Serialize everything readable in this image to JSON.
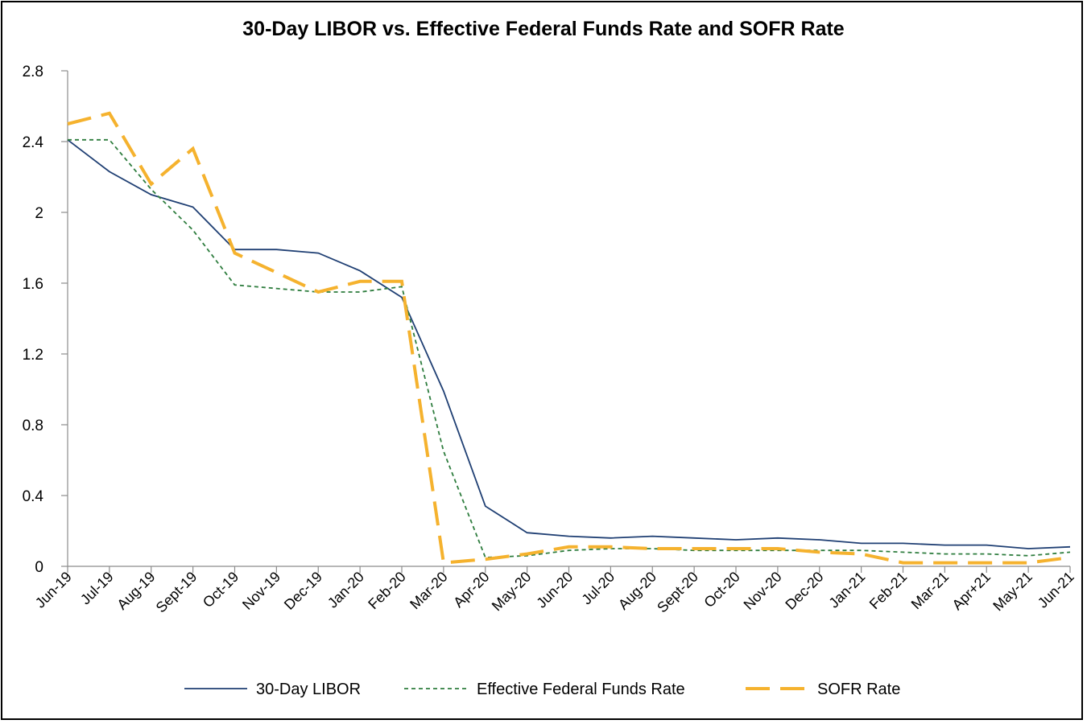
{
  "chart_data": {
    "type": "line",
    "title": "30-Day LIBOR vs. Effective Federal Funds Rate and SOFR Rate",
    "xlabel": "",
    "ylabel": "",
    "categories": [
      "Jun-19",
      "Jul-19",
      "Aug-19",
      "Sept-19",
      "Oct-19",
      "Nov-19",
      "Dec-19",
      "Jan-20",
      "Feb-20",
      "Mar-20",
      "Apr-20",
      "May-20",
      "Jun-20",
      "Jul-20",
      "Aug-20",
      "Sept-20",
      "Oct-20",
      "Nov-20",
      "Dec-20",
      "Jan-21",
      "Feb-21",
      "Mar-21",
      "Apr+21",
      "May-21",
      "Jun-21"
    ],
    "yticks": [
      0,
      0.4,
      0.8,
      1.2,
      1.6,
      2,
      2.4,
      2.8
    ],
    "ytick_labels": [
      "0",
      "0.4",
      "0.8",
      "1.2",
      "1.6",
      "2",
      "2.4",
      "2.8"
    ],
    "ylim": [
      0,
      2.8
    ],
    "grid": false,
    "legend_position": "bottom",
    "series": [
      {
        "name": "30-Day LIBOR",
        "color": "#1F3F73",
        "style": "solid",
        "values": [
          2.41,
          2.23,
          2.1,
          2.03,
          1.79,
          1.79,
          1.77,
          1.67,
          1.52,
          0.99,
          0.34,
          0.19,
          0.17,
          0.16,
          0.17,
          0.16,
          0.15,
          0.16,
          0.15,
          0.13,
          0.13,
          0.12,
          0.12,
          0.1,
          0.11
        ]
      },
      {
        "name": "Effective Federal Funds Rate",
        "color": "#2E7D3E",
        "style": "dotted",
        "values": [
          2.41,
          2.41,
          2.13,
          1.9,
          1.59,
          1.57,
          1.55,
          1.55,
          1.58,
          0.65,
          0.05,
          0.06,
          0.09,
          0.1,
          0.1,
          0.09,
          0.09,
          0.09,
          0.09,
          0.09,
          0.08,
          0.07,
          0.07,
          0.06,
          0.08
        ]
      },
      {
        "name": "SOFR Rate",
        "color": "#F5B22E",
        "style": "dashed",
        "values": [
          2.5,
          2.56,
          2.16,
          2.36,
          1.77,
          1.66,
          1.55,
          1.61,
          1.61,
          0.02,
          0.04,
          0.07,
          0.11,
          0.11,
          0.1,
          0.1,
          0.1,
          0.1,
          0.08,
          0.07,
          0.02,
          0.02,
          0.02,
          0.02,
          0.05
        ]
      }
    ]
  }
}
